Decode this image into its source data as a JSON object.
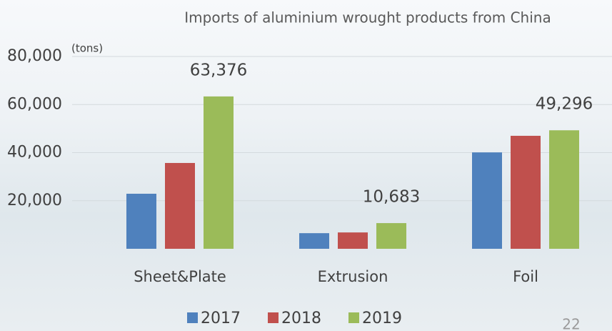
{
  "chart_data": {
    "type": "bar",
    "title": "Imports of aluminium wrought products from China",
    "unit_note": "(tons)",
    "categories": [
      "Sheet&Plate",
      "Extrusion",
      "Foil"
    ],
    "series": [
      {
        "name": "2017",
        "color": "#4f81bd",
        "values": [
          22900,
          6500,
          40100
        ]
      },
      {
        "name": "2018",
        "color": "#c0504d",
        "values": [
          35700,
          6800,
          47000
        ]
      },
      {
        "name": "2019",
        "color": "#9bbb59",
        "values": [
          63376,
          10683,
          49296
        ],
        "value_labels": [
          "63,376",
          "10,683",
          "49,296"
        ]
      }
    ],
    "ylim": [
      0,
      80000
    ],
    "yticks": [
      {
        "value": 20000,
        "label": "20,000"
      },
      {
        "value": 40000,
        "label": "40,000"
      },
      {
        "value": 60000,
        "label": "60,000"
      },
      {
        "value": 80000,
        "label": "80,000"
      }
    ],
    "grid": true,
    "legend": "bottom"
  },
  "page_number": "22"
}
